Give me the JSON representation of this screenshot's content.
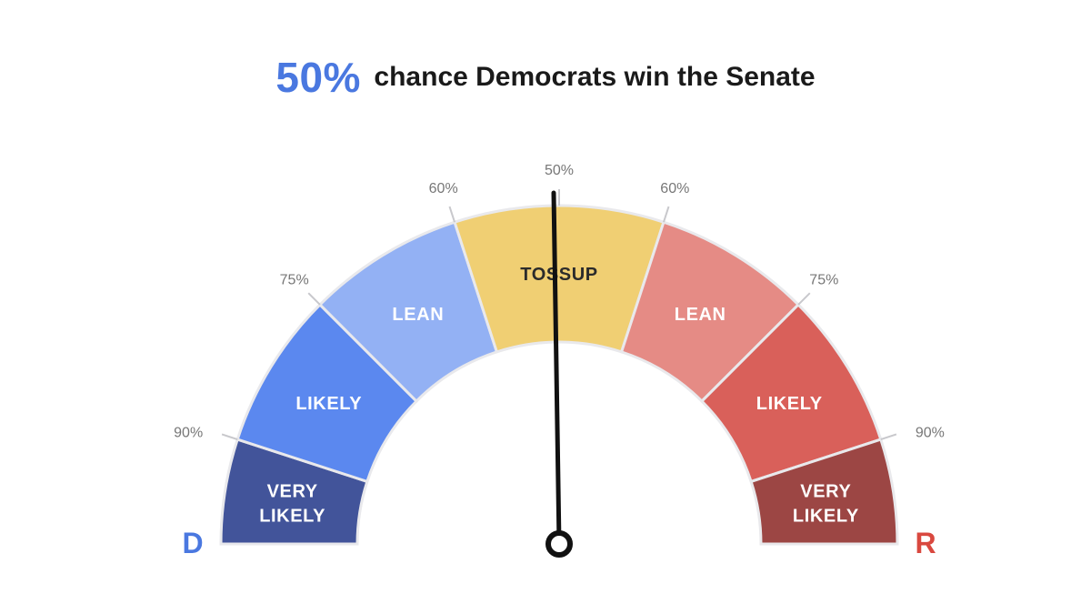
{
  "headline": {
    "probability_text": "50%",
    "text": "chance Democrats win the Senate",
    "probability_color": "#4a78e0"
  },
  "chart_data": {
    "type": "gauge",
    "value": 50,
    "segments": [
      {
        "id": "d-very-likely",
        "lines": [
          "VERY",
          "LIKELY"
        ],
        "from_pct": 0,
        "to_pct": 10,
        "color": "#42549a",
        "text_color": "#ffffff"
      },
      {
        "id": "d-likely",
        "lines": [
          "LIKELY"
        ],
        "from_pct": 10,
        "to_pct": 25,
        "color": "#5b88ef",
        "text_color": "#ffffff"
      },
      {
        "id": "d-lean",
        "lines": [
          "LEAN"
        ],
        "from_pct": 25,
        "to_pct": 40,
        "color": "#93b1f4",
        "text_color": "#ffffff"
      },
      {
        "id": "tossup",
        "lines": [
          "TOSSUP"
        ],
        "from_pct": 40,
        "to_pct": 60,
        "color": "#f0cf73",
        "text_color": "#2b2b2b"
      },
      {
        "id": "r-lean",
        "lines": [
          "LEAN"
        ],
        "from_pct": 60,
        "to_pct": 75,
        "color": "#e58b85",
        "text_color": "#ffffff"
      },
      {
        "id": "r-likely",
        "lines": [
          "LIKELY"
        ],
        "from_pct": 75,
        "to_pct": 90,
        "color": "#d9605a",
        "text_color": "#ffffff"
      },
      {
        "id": "r-very-likely",
        "lines": [
          "VERY",
          "LIKELY"
        ],
        "from_pct": 90,
        "to_pct": 100,
        "color": "#9c4644",
        "text_color": "#ffffff"
      }
    ],
    "ticks": [
      {
        "pct": 10,
        "label": "90%"
      },
      {
        "pct": 25,
        "label": "75%"
      },
      {
        "pct": 40,
        "label": "60%"
      },
      {
        "pct": 50,
        "label": "50%"
      },
      {
        "pct": 60,
        "label": "60%"
      },
      {
        "pct": 75,
        "label": "75%"
      },
      {
        "pct": 90,
        "label": "90%"
      }
    ],
    "left_label": {
      "text": "D",
      "color": "#4a78e0"
    },
    "right_label": {
      "text": "R",
      "color": "#d9483f"
    }
  }
}
